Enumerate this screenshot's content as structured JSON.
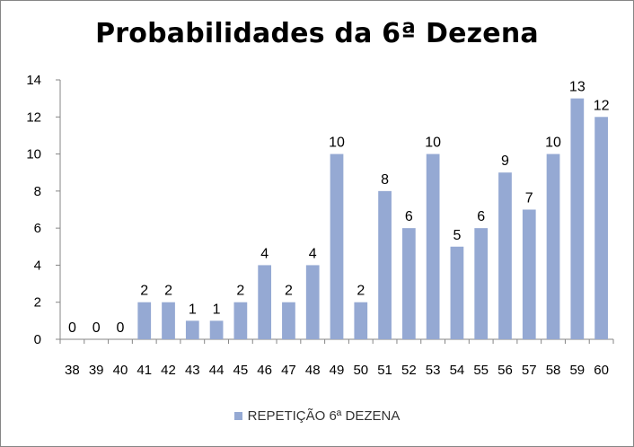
{
  "chart_data": {
    "type": "bar",
    "title": "Probabilidades da 6ª Dezena",
    "categories": [
      "38",
      "39",
      "40",
      "41",
      "42",
      "43",
      "44",
      "45",
      "46",
      "47",
      "48",
      "49",
      "50",
      "51",
      "52",
      "53",
      "54",
      "55",
      "56",
      "57",
      "58",
      "59",
      "60"
    ],
    "series": [
      {
        "name": "REPETIÇÃO 6ª DEZENA",
        "values": [
          0,
          0,
          0,
          2,
          2,
          1,
          1,
          2,
          4,
          2,
          4,
          10,
          2,
          8,
          6,
          10,
          5,
          6,
          9,
          7,
          10,
          13,
          12
        ]
      }
    ],
    "ylim": [
      0,
      14
    ],
    "yticks": [
      0,
      2,
      4,
      6,
      8,
      10,
      12,
      14
    ],
    "grid": false,
    "legend_position": "bottom",
    "data_labels": true,
    "bar_color": "#95a9d3",
    "axis_color": "#868686"
  }
}
